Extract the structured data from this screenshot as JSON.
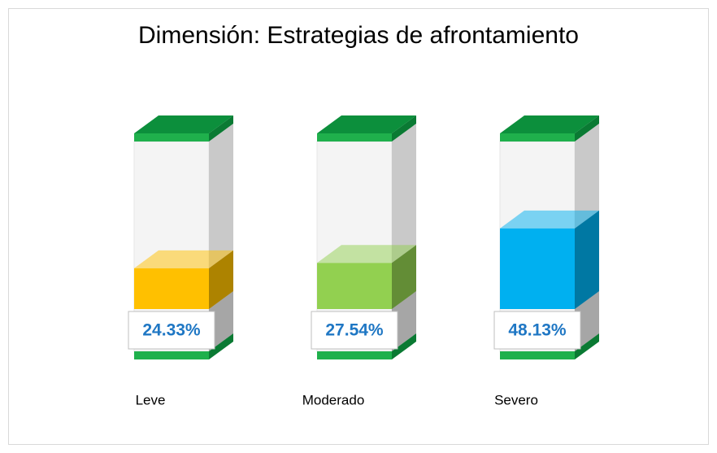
{
  "chart_data": {
    "type": "bar3d",
    "title": "Dimensión: Estrategias de afrontamiento",
    "categories": [
      "Leve",
      "Moderado",
      "Severo"
    ],
    "values": [
      24.33,
      27.54,
      48.13
    ],
    "value_labels": [
      "24.33%",
      "27.54%",
      "48.13%"
    ],
    "colors": [
      "#ffc000",
      "#92d050",
      "#00b0f0"
    ]
  }
}
